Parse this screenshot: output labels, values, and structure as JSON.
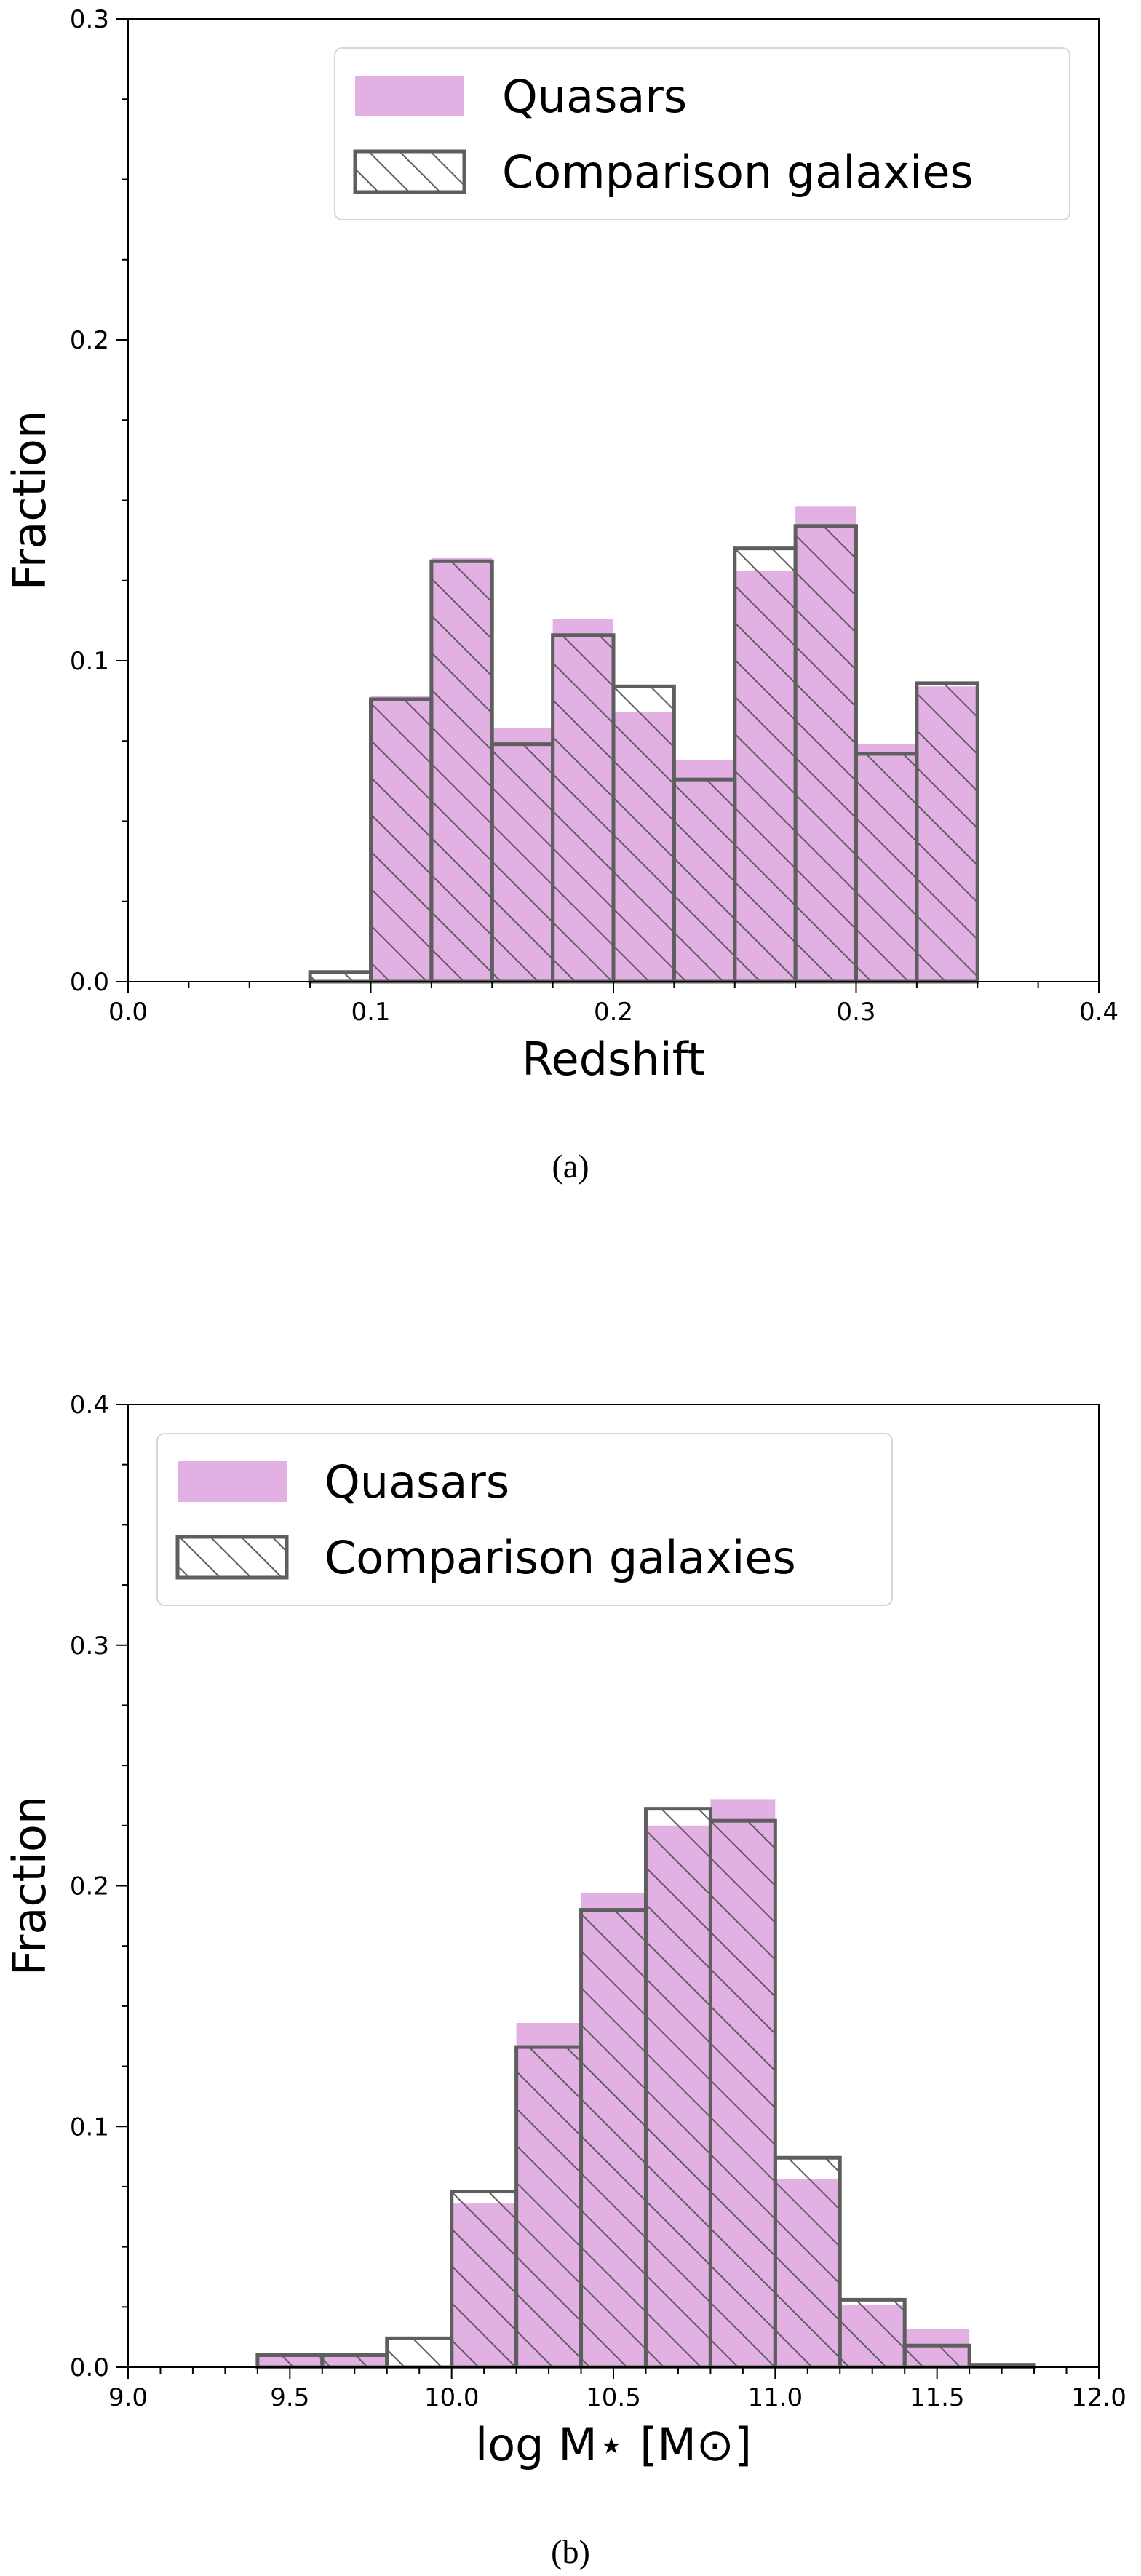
{
  "colors": {
    "quasar_fill": "#e2b0e2",
    "comparison_edge": "#5e5e5e",
    "axis": "#000000"
  },
  "chart_data": [
    {
      "type": "bar",
      "caption": "(a)",
      "xlabel": "Redshift",
      "ylabel": "Fraction",
      "xlim": [
        0.0,
        0.4
      ],
      "ylim": [
        0.0,
        0.3
      ],
      "xticks": [
        "0.0",
        "0.1",
        "0.2",
        "0.3",
        "0.4"
      ],
      "xtick_values": [
        0.0,
        0.1,
        0.2,
        0.3,
        0.4
      ],
      "yticks": [
        "0.0",
        "0.1",
        "0.2",
        "0.3"
      ],
      "ytick_values": [
        0.0,
        0.1,
        0.2,
        0.3
      ],
      "x_minor_step": 0.025,
      "y_minor_step": 0.025,
      "legend_position": "top-right",
      "bin_edges": [
        0.075,
        0.1,
        0.125,
        0.15,
        0.175,
        0.2,
        0.225,
        0.25,
        0.275,
        0.3,
        0.325,
        0.35
      ],
      "series": [
        {
          "name": "Quasars",
          "style": "filled",
          "values": [
            0.0,
            0.089,
            0.132,
            0.079,
            0.113,
            0.084,
            0.069,
            0.128,
            0.148,
            0.074,
            0.092
          ]
        },
        {
          "name": "Comparison galaxies",
          "style": "hatched",
          "values": [
            0.003,
            0.088,
            0.131,
            0.074,
            0.108,
            0.092,
            0.063,
            0.135,
            0.142,
            0.071,
            0.093
          ]
        }
      ]
    },
    {
      "type": "bar",
      "caption": "(b)",
      "xlabel": "log M⋆ [M⊙]",
      "ylabel": "Fraction",
      "xlim": [
        9.0,
        12.0
      ],
      "ylim": [
        0.0,
        0.4
      ],
      "xticks": [
        "9.0",
        "9.5",
        "10.0",
        "10.5",
        "11.0",
        "11.5",
        "12.0"
      ],
      "xtick_values": [
        9.0,
        9.5,
        10.0,
        10.5,
        11.0,
        11.5,
        12.0
      ],
      "yticks": [
        "0.0",
        "0.1",
        "0.2",
        "0.3",
        "0.4"
      ],
      "ytick_values": [
        0.0,
        0.1,
        0.2,
        0.3,
        0.4
      ],
      "x_minor_step": 0.1,
      "y_minor_step": 0.025,
      "legend_position": "top-left",
      "bin_edges": [
        9.4,
        9.6,
        9.8,
        10.0,
        10.2,
        10.4,
        10.6,
        10.8,
        11.0,
        11.2,
        11.4,
        11.6,
        11.8
      ],
      "series": [
        {
          "name": "Quasars",
          "style": "filled",
          "values": [
            0.006,
            0.006,
            0.0,
            0.068,
            0.143,
            0.197,
            0.225,
            0.236,
            0.078,
            0.026,
            0.016,
            0.0
          ]
        },
        {
          "name": "Comparison galaxies",
          "style": "hatched",
          "values": [
            0.005,
            0.005,
            0.012,
            0.073,
            0.133,
            0.19,
            0.232,
            0.227,
            0.087,
            0.028,
            0.009,
            0.001
          ]
        }
      ]
    }
  ]
}
